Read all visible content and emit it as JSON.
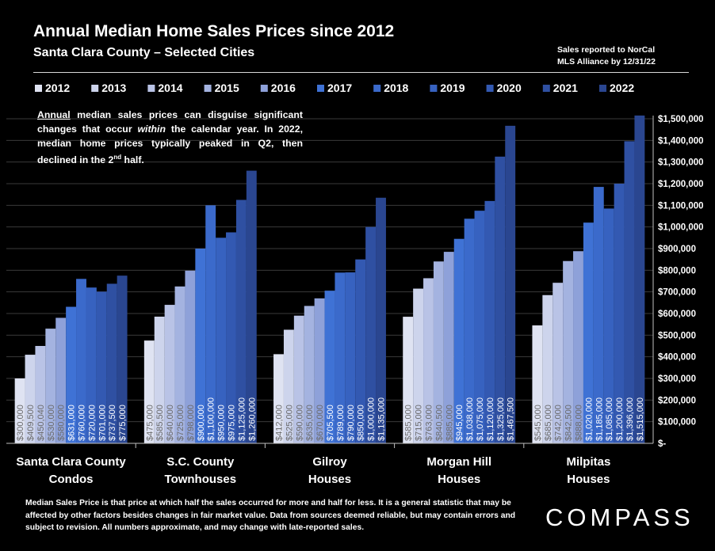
{
  "header": {
    "title": "Annual Median Home Sales Prices since 2012",
    "subtitle": "Santa Clara County – Selected Cities",
    "source_line1": "Sales reported to NorCal",
    "source_line2": "MLS Alliance by 12/31/22"
  },
  "note": {
    "word1": "Annual",
    "text1": " median sales prices can disguise significant changes that occur ",
    "emph": "within",
    "text2": " the calendar year. In 2022, median home prices typically peaked in Q2, then declined in the 2",
    "sup": "nd",
    "text3": " half."
  },
  "footer": {
    "text": "Median Sales Price is that price at which half the sales occurred for more and half for less. It is a general statistic that may be affected by other factors besides changes in fair market value. Data from sources deemed reliable, but may contain errors and subject to revision.  All numbers approximate, and may change with late-reported sales."
  },
  "brand": {
    "logo": "COMPASS"
  },
  "chart_data": {
    "type": "bar",
    "title": "Annual Median Home Sales Prices since 2012",
    "subtitle": "Santa Clara County – Selected Cities",
    "ylim": [
      0,
      1500000
    ],
    "yticks": [
      0,
      100000,
      200000,
      300000,
      400000,
      500000,
      600000,
      700000,
      800000,
      900000,
      1000000,
      1100000,
      1200000,
      1300000,
      1400000,
      1500000
    ],
    "ytick_labels": [
      "$-",
      "$100,000",
      "$200,000",
      "$300,000",
      "$400,000",
      "$500,000",
      "$600,000",
      "$700,000",
      "$800,000",
      "$900,000",
      "$1,000,000",
      "$1,100,000",
      "$1,200,000",
      "$1,300,000",
      "$1,400,000",
      "$1,500,000"
    ],
    "y_axis_position": "right",
    "grid": true,
    "legend_position": "top",
    "categories": [
      {
        "line1": "Santa Clara County",
        "line2": "Condos"
      },
      {
        "line1": "S.C. County",
        "line2": "Townhouses"
      },
      {
        "line1": "Gilroy",
        "line2": "Houses"
      },
      {
        "line1": "Morgan Hill",
        "line2": "Houses"
      },
      {
        "line1": "Milpitas",
        "line2": "Houses"
      }
    ],
    "series": [
      {
        "name": "2012",
        "color": "#dfe3f2",
        "values": [
          300000,
          475000,
          412000,
          585000,
          545000
        ],
        "labels": [
          "$300,000",
          "$475,000",
          "$412,000",
          "$585,000",
          "$545,000"
        ]
      },
      {
        "name": "2013",
        "color": "#cdd4ec",
        "values": [
          409500,
          585500,
          525000,
          715000,
          685000
        ],
        "labels": [
          "$409,500",
          "$585,500",
          "$525,000",
          "$715,000",
          "$685,000"
        ]
      },
      {
        "name": "2014",
        "color": "#b9c3e6",
        "values": [
          450040,
          640000,
          590000,
          763000,
          742000
        ],
        "labels": [
          "$450,040",
          "$640,000",
          "$590,000",
          "$763,000",
          "$742,000"
        ]
      },
      {
        "name": "2015",
        "color": "#a4b3e0",
        "values": [
          530000,
          725000,
          635000,
          840500,
          842500
        ],
        "labels": [
          "$530,000",
          "$725,000",
          "$635,000",
          "$840,500",
          "$842,500"
        ]
      },
      {
        "name": "2016",
        "color": "#8ea1d9",
        "values": [
          580000,
          798000,
          670000,
          885000,
          888000
        ],
        "labels": [
          "$580,000",
          "$798,000",
          "$670,000",
          "$885,000",
          "$888,000"
        ]
      },
      {
        "name": "2017",
        "color": "#3f72d5",
        "values": [
          631000,
          900000,
          705500,
          945000,
          1020000
        ],
        "labels": [
          "$631,000",
          "$900,000",
          "$705,500",
          "$945,000",
          "$1,020,000"
        ]
      },
      {
        "name": "2018",
        "color": "#3b6acb",
        "values": [
          760000,
          1100000,
          789000,
          1038000,
          1185000
        ],
        "labels": [
          "$760,000",
          "$1,100,000",
          "$789,000",
          "$1,038,000",
          "$1,185,000"
        ]
      },
      {
        "name": "2019",
        "color": "#3762c0",
        "values": [
          720000,
          950000,
          790000,
          1075000,
          1085000
        ],
        "labels": [
          "$720,000",
          "$950,000",
          "$790,000",
          "$1,075,000",
          "$1,085,000"
        ]
      },
      {
        "name": "2020",
        "color": "#3359b2",
        "values": [
          701000,
          975000,
          850000,
          1120000,
          1200000
        ],
        "labels": [
          "$701,000",
          "$975,000",
          "$850,000",
          "$1,120,000",
          "$1,200,000"
        ]
      },
      {
        "name": "2021",
        "color": "#2f50a2",
        "values": [
          737500,
          1125000,
          1000000,
          1325000,
          1396000
        ],
        "labels": [
          "$737,500",
          "$1,125,000",
          "$1,000,000",
          "$1,325,000",
          "$1,396,000"
        ]
      },
      {
        "name": "2022",
        "color": "#2a4690",
        "values": [
          775000,
          1260000,
          1135000,
          1467500,
          1515000
        ],
        "labels": [
          "$775,000",
          "$1,260,000",
          "$1,135,000",
          "$1,467,500",
          "$1,515,000"
        ]
      }
    ]
  }
}
